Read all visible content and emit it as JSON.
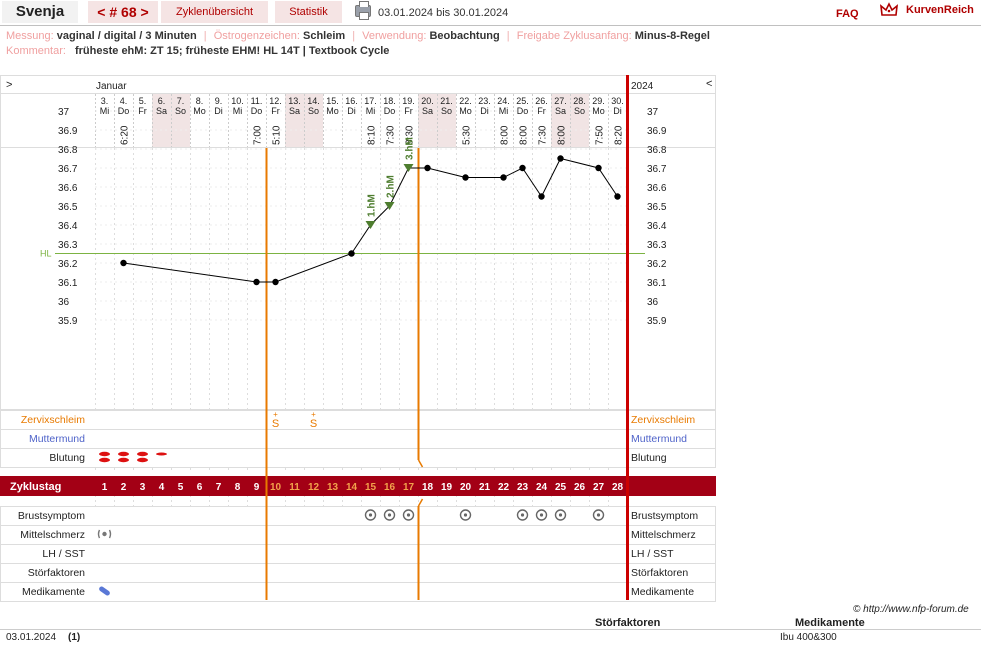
{
  "header": {
    "name": "Svenja",
    "cycle_prev": "<",
    "cycle_label": "# 68",
    "cycle_next": ">",
    "tab_overview": "Zyklenübersicht",
    "tab_stats": "Statistik",
    "date_range": "03.01.2024 bis 30.01.2024",
    "faq": "FAQ",
    "logo": "KurvenReich"
  },
  "info": {
    "messung_label": "Messung:",
    "messung_value": "vaginal / digital / 3 Minuten",
    "oestrogen_label": "Östrogenzeichen:",
    "oestrogen_value": "Schleim",
    "verwendung_label": "Verwendung:",
    "verwendung_value": "Beobachtung",
    "freigabe_label": "Freigabe Zyklusanfang:",
    "freigabe_value": "Minus-8-Regel",
    "kommentar_label": "Kommentar:",
    "kommentar_value": "früheste ehM: ZT 15; früheste EHM! HL 14T | Textbook Cycle"
  },
  "chart_data": {
    "type": "line",
    "month": "Januar",
    "year": "2024",
    "nav_left": ">",
    "nav_right": "<",
    "dates": [
      "3.",
      "4.",
      "5.",
      "6.",
      "7.",
      "8.",
      "9.",
      "10.",
      "11.",
      "12.",
      "13.",
      "14.",
      "15.",
      "16.",
      "17.",
      "18.",
      "19.",
      "20.",
      "21.",
      "22.",
      "23.",
      "24.",
      "25.",
      "26.",
      "27.",
      "28.",
      "29.",
      "30."
    ],
    "weekdays": [
      "Mi",
      "Do",
      "Fr",
      "Sa",
      "So",
      "Mo",
      "Di",
      "Mi",
      "Do",
      "Fr",
      "Sa",
      "So",
      "Mo",
      "Di",
      "Mi",
      "Do",
      "Fr",
      "Sa",
      "So",
      "Mo",
      "Di",
      "Mi",
      "Do",
      "Fr",
      "Sa",
      "So",
      "Mo",
      "Di"
    ],
    "weekend_days": [
      4,
      5,
      11,
      12,
      18,
      19,
      25,
      26
    ],
    "times": [
      "",
      "6:20",
      "",
      "",
      "",
      "",
      "",
      "",
      "7:00",
      "5:10",
      "",
      "",
      "",
      "",
      "8:10",
      "7:30",
      "8:30",
      "",
      "",
      "5:30",
      "",
      "8:00",
      "8:00",
      "7:30",
      "8:00",
      "",
      "7:50",
      "8:20"
    ],
    "cycle_days": [
      1,
      2,
      3,
      4,
      5,
      6,
      7,
      8,
      9,
      10,
      11,
      12,
      13,
      14,
      15,
      16,
      17,
      18,
      19,
      20,
      21,
      22,
      23,
      24,
      25,
      26,
      27,
      28
    ],
    "fertile_window": [
      10,
      17
    ],
    "temperature_series": {
      "name": "Temperatur",
      "points": [
        [
          2,
          36.2
        ],
        [
          9,
          36.1
        ],
        [
          10,
          36.1
        ],
        [
          14,
          36.25
        ],
        [
          15,
          36.4
        ],
        [
          16,
          36.5
        ],
        [
          17,
          36.7
        ],
        [
          18,
          36.7
        ],
        [
          20,
          36.65
        ],
        [
          22,
          36.65
        ],
        [
          23,
          36.7
        ],
        [
          24,
          36.55
        ],
        [
          25,
          36.75
        ],
        [
          27,
          36.7
        ],
        [
          28,
          36.55
        ]
      ]
    },
    "hm_markers": [
      {
        "day": 15,
        "label": "1.hM"
      },
      {
        "day": 16,
        "label": "2.hM"
      },
      {
        "day": 17,
        "label": "3.hM"
      }
    ],
    "coverline": {
      "value": 36.25,
      "label": "HL"
    },
    "y_ticks": [
      "37",
      "36.9",
      "36.8",
      "36.7",
      "36.6",
      "36.5",
      "36.4",
      "36.3",
      "36.2",
      "36.1",
      "36",
      "35.9"
    ],
    "ylim": [
      35.9,
      37.0
    ],
    "row_labels": {
      "zervixschleim": "Zervixschleim",
      "muttermund": "Muttermund",
      "blutung": "Blutung",
      "zyklustag": "Zyklustag",
      "brustsymptom": "Brustsymptom",
      "mittelschmerz": "Mittelschmerz",
      "lh_sst": "LH / SST",
      "stoerfaktoren": "Störfaktoren",
      "medikamente": "Medikamente"
    },
    "zervixschleim": [
      {
        "day": 10,
        "mark": "S",
        "sup": "+"
      },
      {
        "day": 12,
        "mark": "S",
        "sup": "+"
      }
    ],
    "blutung": [
      {
        "day": 1,
        "level": 2
      },
      {
        "day": 2,
        "level": 2
      },
      {
        "day": 3,
        "level": 2
      },
      {
        "day": 4,
        "level": 1
      }
    ],
    "brustsymptom_days": [
      15,
      16,
      17,
      20,
      23,
      24,
      25,
      27
    ],
    "mittelschmerz_days": [
      1
    ],
    "medikamente_days": [
      1
    ],
    "colors": {
      "temp_line": "#000000",
      "fertile_line": "#e87a00",
      "cycle_end": "#cc0000",
      "zyklustag_bar": "#a30015",
      "coverline": "#7cb342",
      "hm_marker": "#4e7d2f",
      "blood": "#dd1111",
      "muttermund": "#4f63c9"
    }
  },
  "footer": {
    "copyright": "© http://www.nfp-forum.de",
    "stoerfaktoren_header": "Störfaktoren",
    "medikamente_header": "Medikamente",
    "date": "03.01.2024",
    "count": "(1)",
    "medikamente_value": "Ibu 400&300"
  }
}
